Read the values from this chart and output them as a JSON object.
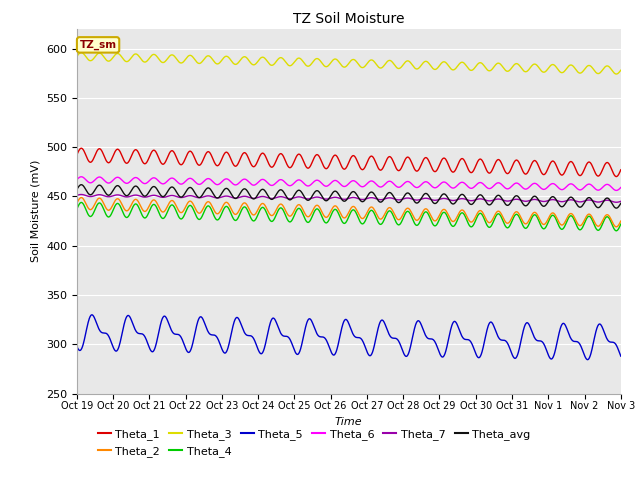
{
  "title": "TZ Soil Moisture",
  "xlabel": "Time",
  "ylabel": "Soil Moisture (mV)",
  "ylim": [
    250,
    620
  ],
  "yticks": [
    250,
    300,
    350,
    400,
    450,
    500,
    550,
    600
  ],
  "bg_color": "#e8e8e8",
  "xtick_labels": [
    "Oct 19",
    "Oct 20",
    "Oct 21",
    "Oct 22",
    "Oct 23",
    "Oct 24",
    "Oct 25",
    "Oct 26",
    "Oct 27",
    "Oct 28",
    "Oct 29",
    "Oct 30",
    "Oct 31",
    "Nov 1",
    "Nov 2",
    "Nov 3"
  ],
  "legend_label": "TZ_sm",
  "series": {
    "Theta_1": {
      "color": "#dd0000",
      "base": 492,
      "amplitude": 7,
      "freq": 2.0,
      "trend": -15
    },
    "Theta_2": {
      "color": "#ff8800",
      "base": 443,
      "amplitude": 6,
      "freq": 2.0,
      "trend": -18
    },
    "Theta_3": {
      "color": "#dddd00",
      "base": 592,
      "amplitude": 4,
      "freq": 2.0,
      "trend": -14
    },
    "Theta_4": {
      "color": "#00cc00",
      "base": 437,
      "amplitude": 7,
      "freq": 2.0,
      "trend": -15
    },
    "Theta_5": {
      "color": "#0000cc",
      "base": 312,
      "amplitude": 14,
      "freq": 1.0,
      "trend": -10
    },
    "Theta_6": {
      "color": "#ff00ff",
      "base": 467,
      "amplitude": 3,
      "freq": 2.0,
      "trend": -8
    },
    "Theta_7": {
      "color": "#9900aa",
      "base": 451,
      "amplitude": 1,
      "freq": 2.0,
      "trend": -6
    },
    "Theta_avg": {
      "color": "#111111",
      "base": 457,
      "amplitude": 5,
      "freq": 2.0,
      "trend": -14
    }
  },
  "num_points": 1440,
  "days": 15,
  "figsize": [
    6.4,
    4.8
  ],
  "dpi": 100
}
